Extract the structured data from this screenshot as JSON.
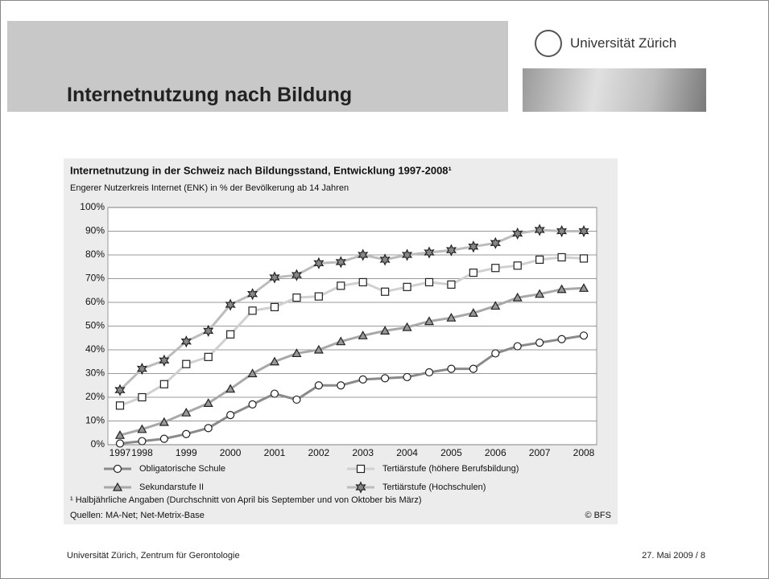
{
  "slide": {
    "title": "Internetnutzung nach Bildung",
    "logo": "Universität Zürich",
    "footer_left": "Universität Zürich, Zentrum für Gerontologie",
    "footer_right": "27. Mai 2009  /  8"
  },
  "chart_data": {
    "type": "line",
    "title": "Internetnutzung in der Schweiz nach Bildungsstand, Entwicklung 1997-2008¹",
    "subtitle": "Engerer Nutzerkreis Internet (ENK) in % der Bevölkerung ab 14 Jahren",
    "footnote": "¹  Halbjährliche Angaben (Durchschnitt von April bis September und von Oktober bis März)",
    "source": "Quellen: MA-Net; Net-Metrix-Base",
    "copyright": "© BFS",
    "categories": [
      "1997",
      "1998",
      null,
      "1999",
      null,
      "2000",
      null,
      "2001",
      null,
      "2002",
      null,
      "2003",
      null,
      "2004",
      null,
      "2005",
      null,
      "2006",
      null,
      "2007",
      null,
      "2008"
    ],
    "ylim": [
      0,
      100
    ],
    "yticks": [
      {
        "value": 0,
        "label": "0%"
      },
      {
        "value": 10,
        "label": "10%"
      },
      {
        "value": 20,
        "label": "20%"
      },
      {
        "value": 30,
        "label": "30%"
      },
      {
        "value": 40,
        "label": "40%"
      },
      {
        "value": 50,
        "label": "50%"
      },
      {
        "value": 60,
        "label": "60%"
      },
      {
        "value": 70,
        "label": "70%"
      },
      {
        "value": 80,
        "label": "80%"
      },
      {
        "value": 90,
        "label": "90%"
      },
      {
        "value": 100,
        "label": "100%"
      }
    ],
    "grid": true,
    "series": [
      {
        "name": "Obligatorische Schule",
        "color": "#8a8a8a",
        "marker": "circle",
        "values": [
          0.5,
          1.5,
          2.5,
          4.5,
          7,
          12.5,
          17,
          21.5,
          19,
          25,
          25,
          27.5,
          28,
          28.5,
          30.5,
          32,
          32,
          38.5,
          41.5,
          43,
          44.5,
          46
        ]
      },
      {
        "name": "Tertiärstufe (höhere Berufsbildung)",
        "color": "#d0d0d0",
        "marker": "square",
        "values": [
          16.5,
          20,
          25.5,
          34,
          37,
          46.5,
          56.5,
          58,
          62,
          62.5,
          67,
          68.5,
          64.5,
          66.5,
          68.5,
          67.5,
          72.5,
          74.5,
          75.5,
          78,
          79,
          78.5
        ]
      },
      {
        "name": "Sekundarstufe II",
        "color": "#a8a8a8",
        "marker": "triangle",
        "values": [
          4,
          6.5,
          9.5,
          13.5,
          17.5,
          23.5,
          30,
          35,
          38.5,
          40,
          43.5,
          46,
          48,
          49.5,
          52,
          53.5,
          55.5,
          58.5,
          62,
          63.5,
          65.5,
          66
        ]
      },
      {
        "name": "Tertiärstufe (Hochschulen)",
        "color": "#bcbcbc",
        "marker": "star",
        "values": [
          23,
          32,
          35.5,
          43.5,
          48,
          59,
          63.5,
          70.5,
          71.5,
          76.5,
          77,
          80,
          78,
          80,
          81,
          82,
          83.5,
          85,
          89,
          90.5,
          90,
          90
        ]
      }
    ]
  }
}
